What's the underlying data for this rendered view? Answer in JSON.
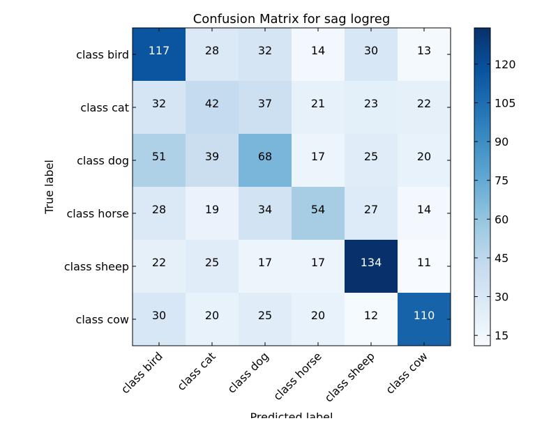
{
  "chart_data": {
    "type": "heatmap",
    "title": "Confusion Matrix for sag logreg",
    "xlabel": "Predicted label",
    "ylabel": "True label",
    "row_labels": [
      "class bird",
      "class cat",
      "class dog",
      "class horse",
      "class sheep",
      "class cow"
    ],
    "col_labels": [
      "class bird",
      "class cat",
      "class dog",
      "class horse",
      "class sheep",
      "class cow"
    ],
    "values": [
      [
        117,
        28,
        32,
        14,
        30,
        13
      ],
      [
        32,
        42,
        37,
        21,
        23,
        22
      ],
      [
        51,
        39,
        68,
        17,
        25,
        20
      ],
      [
        28,
        19,
        34,
        54,
        27,
        14
      ],
      [
        22,
        25,
        17,
        17,
        134,
        11
      ],
      [
        30,
        20,
        25,
        20,
        12,
        110
      ]
    ],
    "colormap": "Blues",
    "vmin": 11,
    "vmax": 134,
    "colorbar_ticks": [
      15,
      30,
      45,
      60,
      75,
      90,
      105,
      120
    ],
    "text_color_light": "#ffffff",
    "text_color_dark": "#000000"
  }
}
